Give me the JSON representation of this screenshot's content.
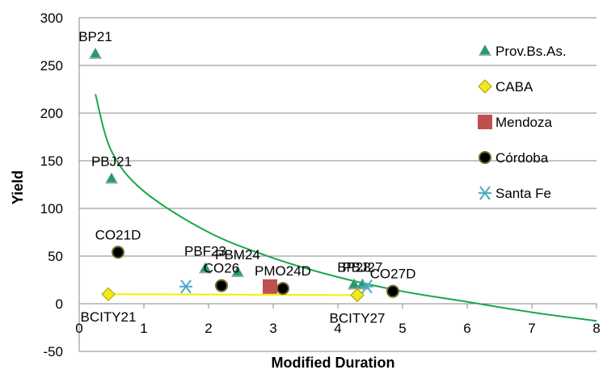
{
  "chart_data": {
    "type": "scatter",
    "title": "",
    "xlabel": "Modified Duration",
    "ylabel": "Yield",
    "xlim": [
      0,
      8
    ],
    "ylim": [
      -50,
      300
    ],
    "x_ticks": [
      "0",
      "1",
      "2",
      "3",
      "4",
      "5",
      "6",
      "7",
      "8"
    ],
    "y_ticks": [
      "-50",
      "0",
      "50",
      "100",
      "150",
      "200",
      "250",
      "300"
    ],
    "grid": "horizontal",
    "legend_position": "right",
    "series": [
      {
        "name": "Prov.Bs.As.",
        "marker": "triangle",
        "color": "#1f9e6e",
        "points": [
          [
            0.25,
            262
          ],
          [
            0.5,
            131
          ],
          [
            1.95,
            37
          ],
          [
            2.45,
            33
          ],
          [
            4.25,
            20
          ],
          [
            4.38,
            20
          ]
        ]
      },
      {
        "name": "CABA",
        "marker": "diamond",
        "color": "#f2e81e",
        "points": [
          [
            0.45,
            10
          ],
          [
            4.3,
            9
          ]
        ]
      },
      {
        "name": "Mendoza",
        "marker": "square",
        "color": "#c0504d",
        "points": [
          [
            2.95,
            18
          ]
        ]
      },
      {
        "name": "Córdoba",
        "marker": "circle",
        "color": "#000000",
        "points": [
          [
            0.6,
            54
          ],
          [
            2.2,
            19
          ],
          [
            3.15,
            16
          ],
          [
            4.85,
            13
          ]
        ]
      },
      {
        "name": "Santa Fe",
        "marker": "asterisk",
        "color": "#4bacc6",
        "points": [
          [
            1.65,
            18
          ],
          [
            4.45,
            18
          ]
        ]
      }
    ],
    "point_labels": [
      {
        "text": "BP21",
        "x": 0.25,
        "y": 262,
        "anchor": "above"
      },
      {
        "text": "PBJ21",
        "x": 0.5,
        "y": 131,
        "anchor": "above"
      },
      {
        "text": "CO21D",
        "x": 0.6,
        "y": 54,
        "anchor": "above"
      },
      {
        "text": "PBF23",
        "x": 1.95,
        "y": 37,
        "anchor": "above"
      },
      {
        "text": "PBM24",
        "x": 2.45,
        "y": 33,
        "anchor": "above"
      },
      {
        "text": "CO26",
        "x": 2.2,
        "y": 19,
        "anchor": "above"
      },
      {
        "text": "PMO24D",
        "x": 3.15,
        "y": 16,
        "anchor": "above"
      },
      {
        "text": "PBJ27",
        "x": 4.38,
        "y": 20,
        "anchor": "above"
      },
      {
        "text": "BP28",
        "x": 4.25,
        "y": 20,
        "anchor": "above"
      },
      {
        "text": "CO27D",
        "x": 4.85,
        "y": 13,
        "anchor": "above"
      },
      {
        "text": "BCITY21",
        "x": 0.45,
        "y": 10,
        "anchor": "below"
      },
      {
        "text": "BCITY27",
        "x": 4.3,
        "y": 9,
        "anchor": "below"
      }
    ],
    "trend_curve": {
      "color": "#18a84a",
      "points": [
        [
          0.25,
          220
        ],
        [
          0.5,
          160
        ],
        [
          1,
          118
        ],
        [
          2,
          75
        ],
        [
          3,
          48
        ],
        [
          4,
          28
        ],
        [
          5,
          13
        ],
        [
          6,
          2
        ],
        [
          7,
          -9
        ],
        [
          8,
          -18
        ]
      ]
    },
    "caba_line": {
      "color": "#f5f000",
      "points": [
        [
          0.45,
          10
        ],
        [
          4.3,
          9
        ]
      ]
    }
  }
}
